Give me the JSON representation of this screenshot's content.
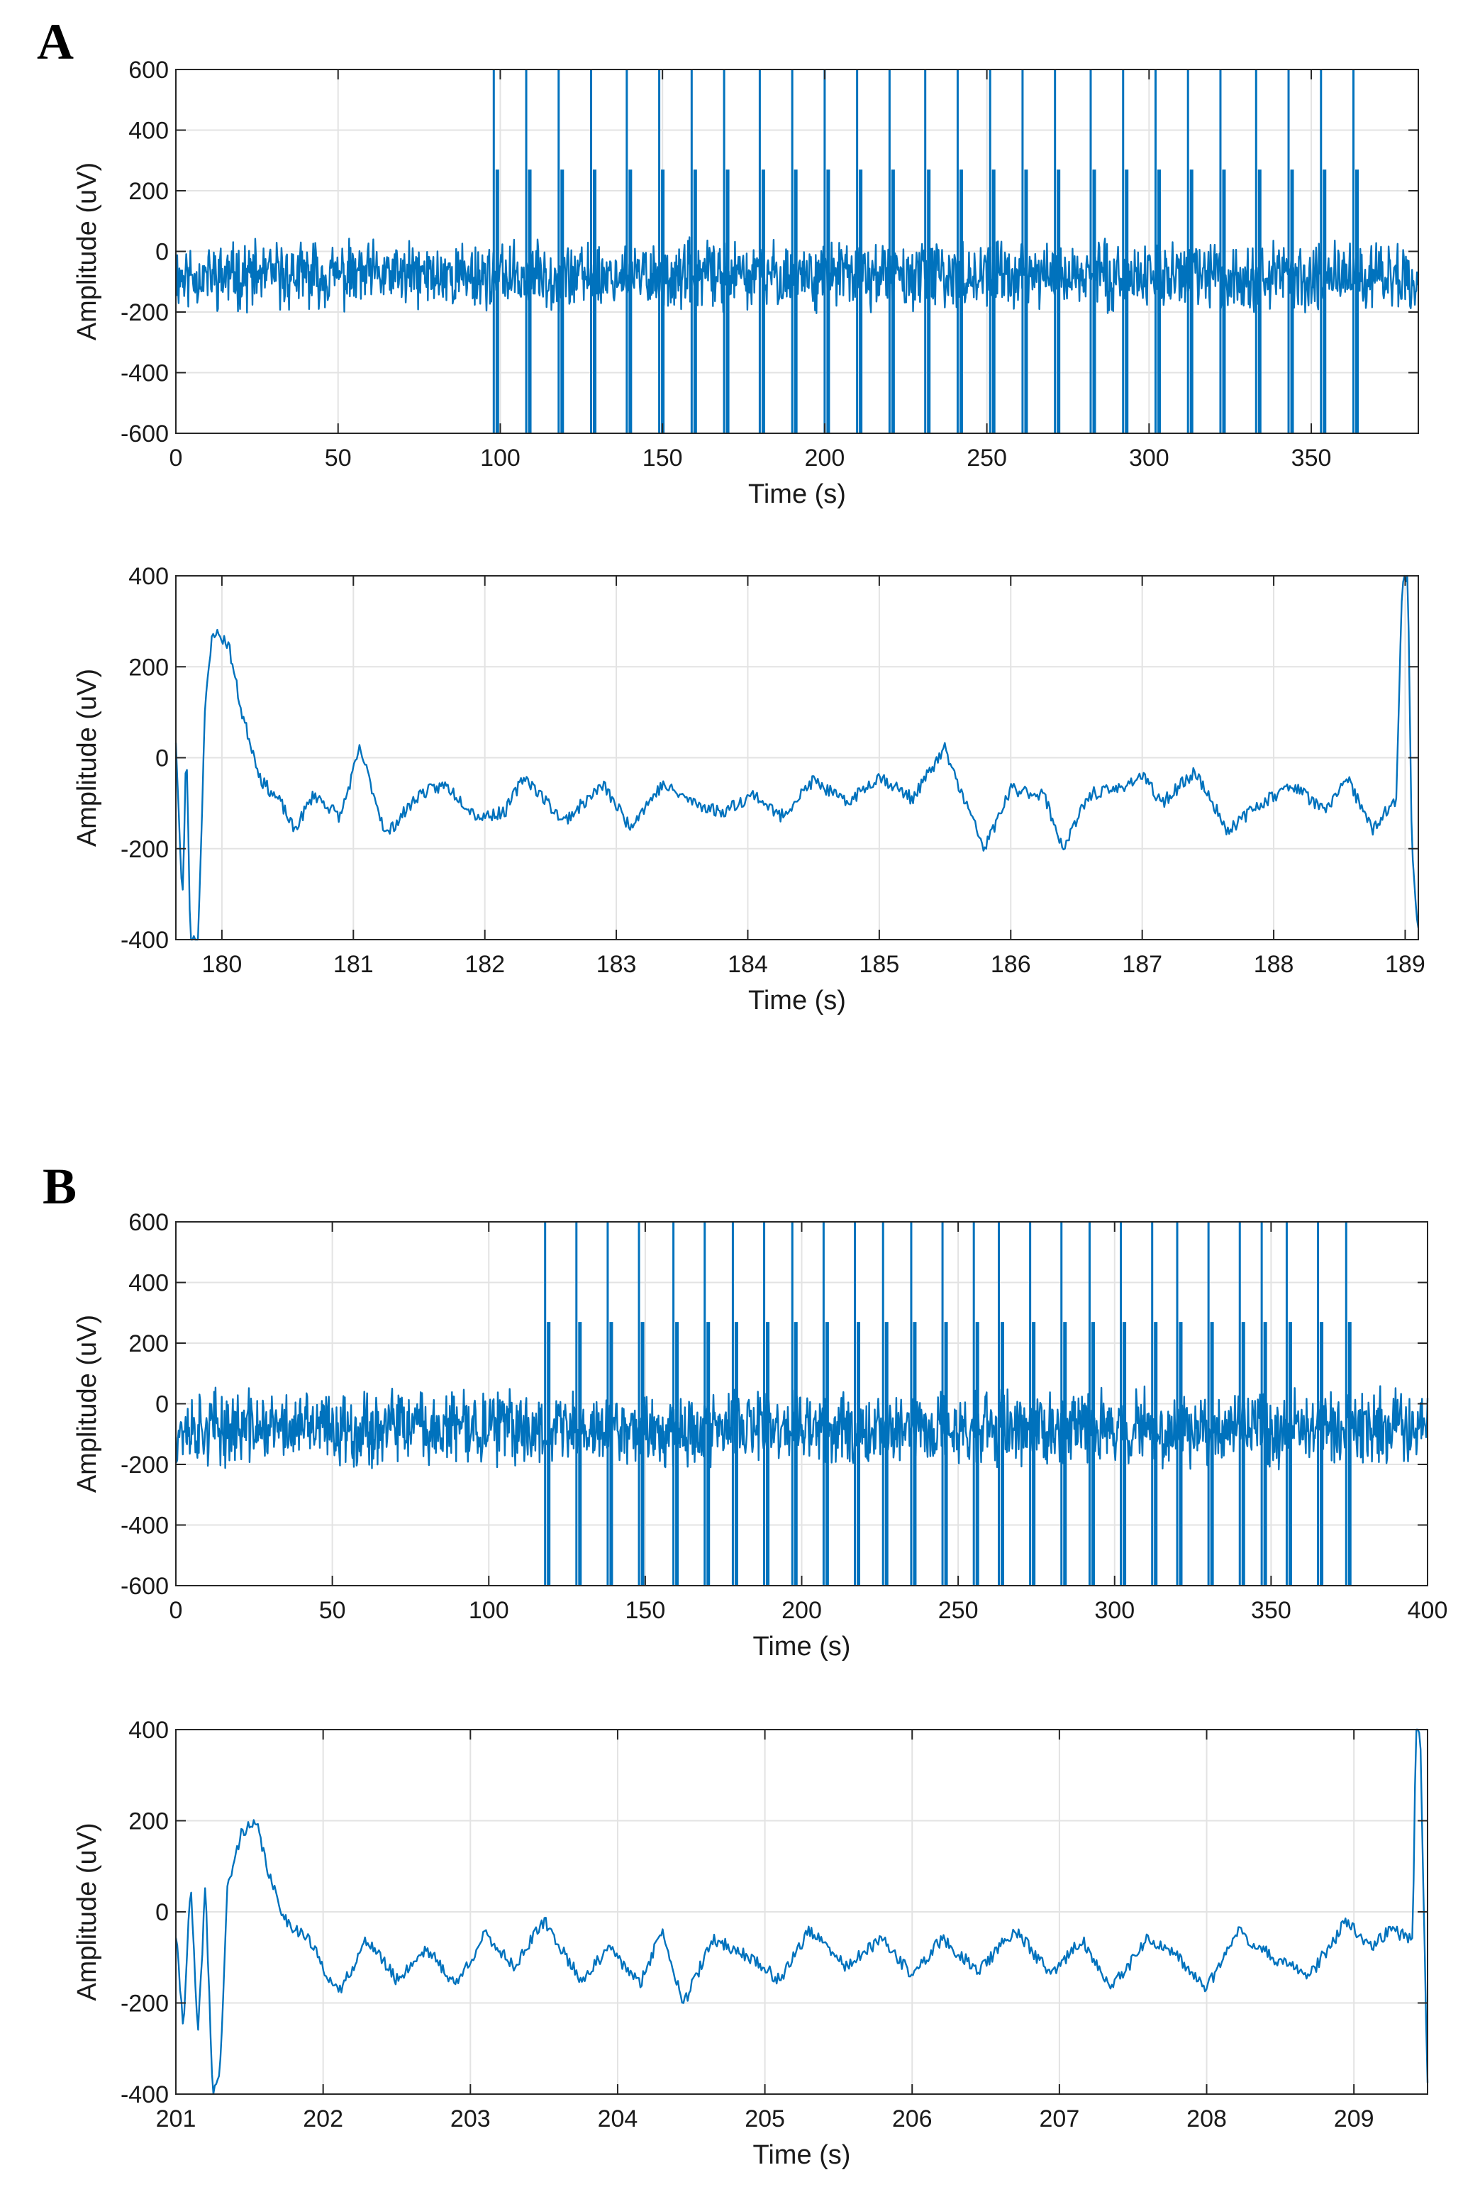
{
  "panels": [
    {
      "letter": "A"
    },
    {
      "letter": "B"
    }
  ],
  "colors": {
    "trace": "#0072BD",
    "grid": "#e3e3e3",
    "axis": "#262626"
  },
  "chart_data": [
    {
      "id": "A-overview",
      "type": "line",
      "panel": "A",
      "xlabel": "Time (s)",
      "ylabel": "Amplitude (uV)",
      "xlim": [
        0,
        383
      ],
      "ylim": [
        -600,
        600
      ],
      "xticks": [
        0,
        50,
        100,
        150,
        200,
        250,
        300,
        350
      ],
      "yticks": [
        -600,
        -400,
        -200,
        0,
        200,
        400,
        600
      ],
      "signal": {
        "kind": "noise",
        "baseline": -80,
        "noise_amp": 80,
        "t_start": 0,
        "t_end": 383,
        "n_points": 1800,
        "seed": 11
      },
      "spikes": [
        98,
        108,
        118,
        128,
        139,
        149,
        159,
        169,
        180,
        190,
        200,
        210,
        220,
        231,
        241,
        251,
        261,
        271,
        282,
        292,
        302,
        312,
        322,
        333,
        343,
        353,
        363
      ],
      "spike_peak": 600,
      "spike_trough": -600
    },
    {
      "id": "A-zoom",
      "type": "line",
      "panel": "A",
      "xlabel": "Time (s)",
      "ylabel": "Amplitude (uV)",
      "xlim": [
        179.65,
        189.1
      ],
      "ylim": [
        -400,
        400
      ],
      "xticks": [
        180,
        181,
        182,
        183,
        184,
        185,
        186,
        187,
        188,
        189
      ],
      "yticks": [
        -400,
        -200,
        0,
        200,
        400
      ],
      "signal": {
        "kind": "trace",
        "t_start": 179.65,
        "t_end": 189.1,
        "n_points": 900,
        "seed": 23,
        "keypoints": [
          [
            179.65,
            40
          ],
          [
            179.7,
            -330
          ],
          [
            179.73,
            40
          ],
          [
            179.76,
            -400
          ],
          [
            179.82,
            -400
          ],
          [
            179.87,
            100
          ],
          [
            179.93,
            280
          ],
          [
            180.05,
            250
          ],
          [
            180.15,
            100
          ],
          [
            180.3,
            -50
          ],
          [
            180.45,
            -100
          ],
          [
            180.55,
            -160
          ],
          [
            180.7,
            -80
          ],
          [
            180.9,
            -130
          ],
          [
            181.05,
            20
          ],
          [
            181.25,
            -170
          ],
          [
            181.5,
            -80
          ],
          [
            181.7,
            -60
          ],
          [
            181.95,
            -130
          ],
          [
            182.15,
            -120
          ],
          [
            182.3,
            -40
          ],
          [
            182.6,
            -140
          ],
          [
            182.9,
            -60
          ],
          [
            183.1,
            -150
          ],
          [
            183.35,
            -60
          ],
          [
            183.6,
            -100
          ],
          [
            183.8,
            -120
          ],
          [
            184.05,
            -80
          ],
          [
            184.25,
            -130
          ],
          [
            184.5,
            -50
          ],
          [
            184.75,
            -100
          ],
          [
            185.0,
            -40
          ],
          [
            185.25,
            -90
          ],
          [
            185.5,
            20
          ],
          [
            185.6,
            -60
          ],
          [
            185.8,
            -200
          ],
          [
            186.0,
            -70
          ],
          [
            186.25,
            -80
          ],
          [
            186.4,
            -200
          ],
          [
            186.6,
            -80
          ],
          [
            186.8,
            -70
          ],
          [
            187.0,
            -40
          ],
          [
            187.15,
            -100
          ],
          [
            187.4,
            -30
          ],
          [
            187.65,
            -160
          ],
          [
            187.9,
            -100
          ],
          [
            188.15,
            -60
          ],
          [
            188.4,
            -120
          ],
          [
            188.55,
            -40
          ],
          [
            188.75,
            -160
          ],
          [
            188.85,
            -120
          ],
          [
            188.93,
            -100
          ],
          [
            188.98,
            400
          ],
          [
            189.02,
            400
          ],
          [
            189.05,
            -200
          ],
          [
            189.1,
            -380
          ]
        ]
      }
    },
    {
      "id": "B-overview",
      "type": "line",
      "panel": "B",
      "xlabel": "Time (s)",
      "ylabel": "Amplitude (uV)",
      "xlim": [
        0,
        400
      ],
      "ylim": [
        -600,
        600
      ],
      "xticks": [
        0,
        50,
        100,
        150,
        200,
        250,
        300,
        350,
        400
      ],
      "yticks": [
        -600,
        -400,
        -200,
        0,
        200,
        400,
        600
      ],
      "signal": {
        "kind": "noise",
        "baseline": -80,
        "noise_amp": 90,
        "t_start": 0,
        "t_end": 400,
        "n_points": 1800,
        "seed": 37
      },
      "spikes": [
        118,
        128,
        138,
        148,
        159,
        169,
        178,
        188,
        197,
        207,
        217,
        226,
        235,
        245,
        255,
        263,
        273,
        283,
        292,
        302,
        312,
        320,
        330,
        340,
        347,
        355,
        365,
        374
      ],
      "spike_peak": 600,
      "spike_trough": -600
    },
    {
      "id": "B-zoom",
      "type": "line",
      "panel": "B",
      "xlabel": "Time (s)",
      "ylabel": "Amplitude (uV)",
      "xlim": [
        201,
        209.5
      ],
      "ylim": [
        -400,
        400
      ],
      "xticks": [
        201,
        202,
        203,
        204,
        205,
        206,
        207,
        208,
        209
      ],
      "yticks": [
        -400,
        -200,
        0,
        200,
        400
      ],
      "signal": {
        "kind": "trace",
        "t_start": 201,
        "t_end": 209.5,
        "n_points": 900,
        "seed": 41,
        "keypoints": [
          [
            201.0,
            -50
          ],
          [
            201.05,
            -250
          ],
          [
            201.1,
            60
          ],
          [
            201.15,
            -280
          ],
          [
            201.2,
            60
          ],
          [
            201.25,
            -400
          ],
          [
            201.3,
            -350
          ],
          [
            201.35,
            50
          ],
          [
            201.45,
            180
          ],
          [
            201.55,
            190
          ],
          [
            201.65,
            60
          ],
          [
            201.75,
            -20
          ],
          [
            201.9,
            -60
          ],
          [
            202.1,
            -180
          ],
          [
            202.3,
            -60
          ],
          [
            202.5,
            -150
          ],
          [
            202.7,
            -80
          ],
          [
            202.9,
            -160
          ],
          [
            203.1,
            -50
          ],
          [
            203.3,
            -120
          ],
          [
            203.5,
            -20
          ],
          [
            203.75,
            -150
          ],
          [
            203.95,
            -80
          ],
          [
            204.15,
            -160
          ],
          [
            204.3,
            -40
          ],
          [
            204.45,
            -200
          ],
          [
            204.65,
            -60
          ],
          [
            204.9,
            -100
          ],
          [
            205.1,
            -150
          ],
          [
            205.3,
            -40
          ],
          [
            205.55,
            -120
          ],
          [
            205.8,
            -60
          ],
          [
            206.0,
            -140
          ],
          [
            206.2,
            -60
          ],
          [
            206.45,
            -130
          ],
          [
            206.7,
            -40
          ],
          [
            206.95,
            -140
          ],
          [
            207.15,
            -60
          ],
          [
            207.35,
            -170
          ],
          [
            207.6,
            -60
          ],
          [
            207.8,
            -100
          ],
          [
            208.0,
            -170
          ],
          [
            208.2,
            -40
          ],
          [
            208.45,
            -100
          ],
          [
            208.7,
            -140
          ],
          [
            208.95,
            -20
          ],
          [
            209.1,
            -80
          ],
          [
            209.25,
            -40
          ],
          [
            209.4,
            -60
          ],
          [
            209.42,
            400
          ],
          [
            209.45,
            400
          ],
          [
            209.5,
            -380
          ]
        ]
      }
    }
  ]
}
